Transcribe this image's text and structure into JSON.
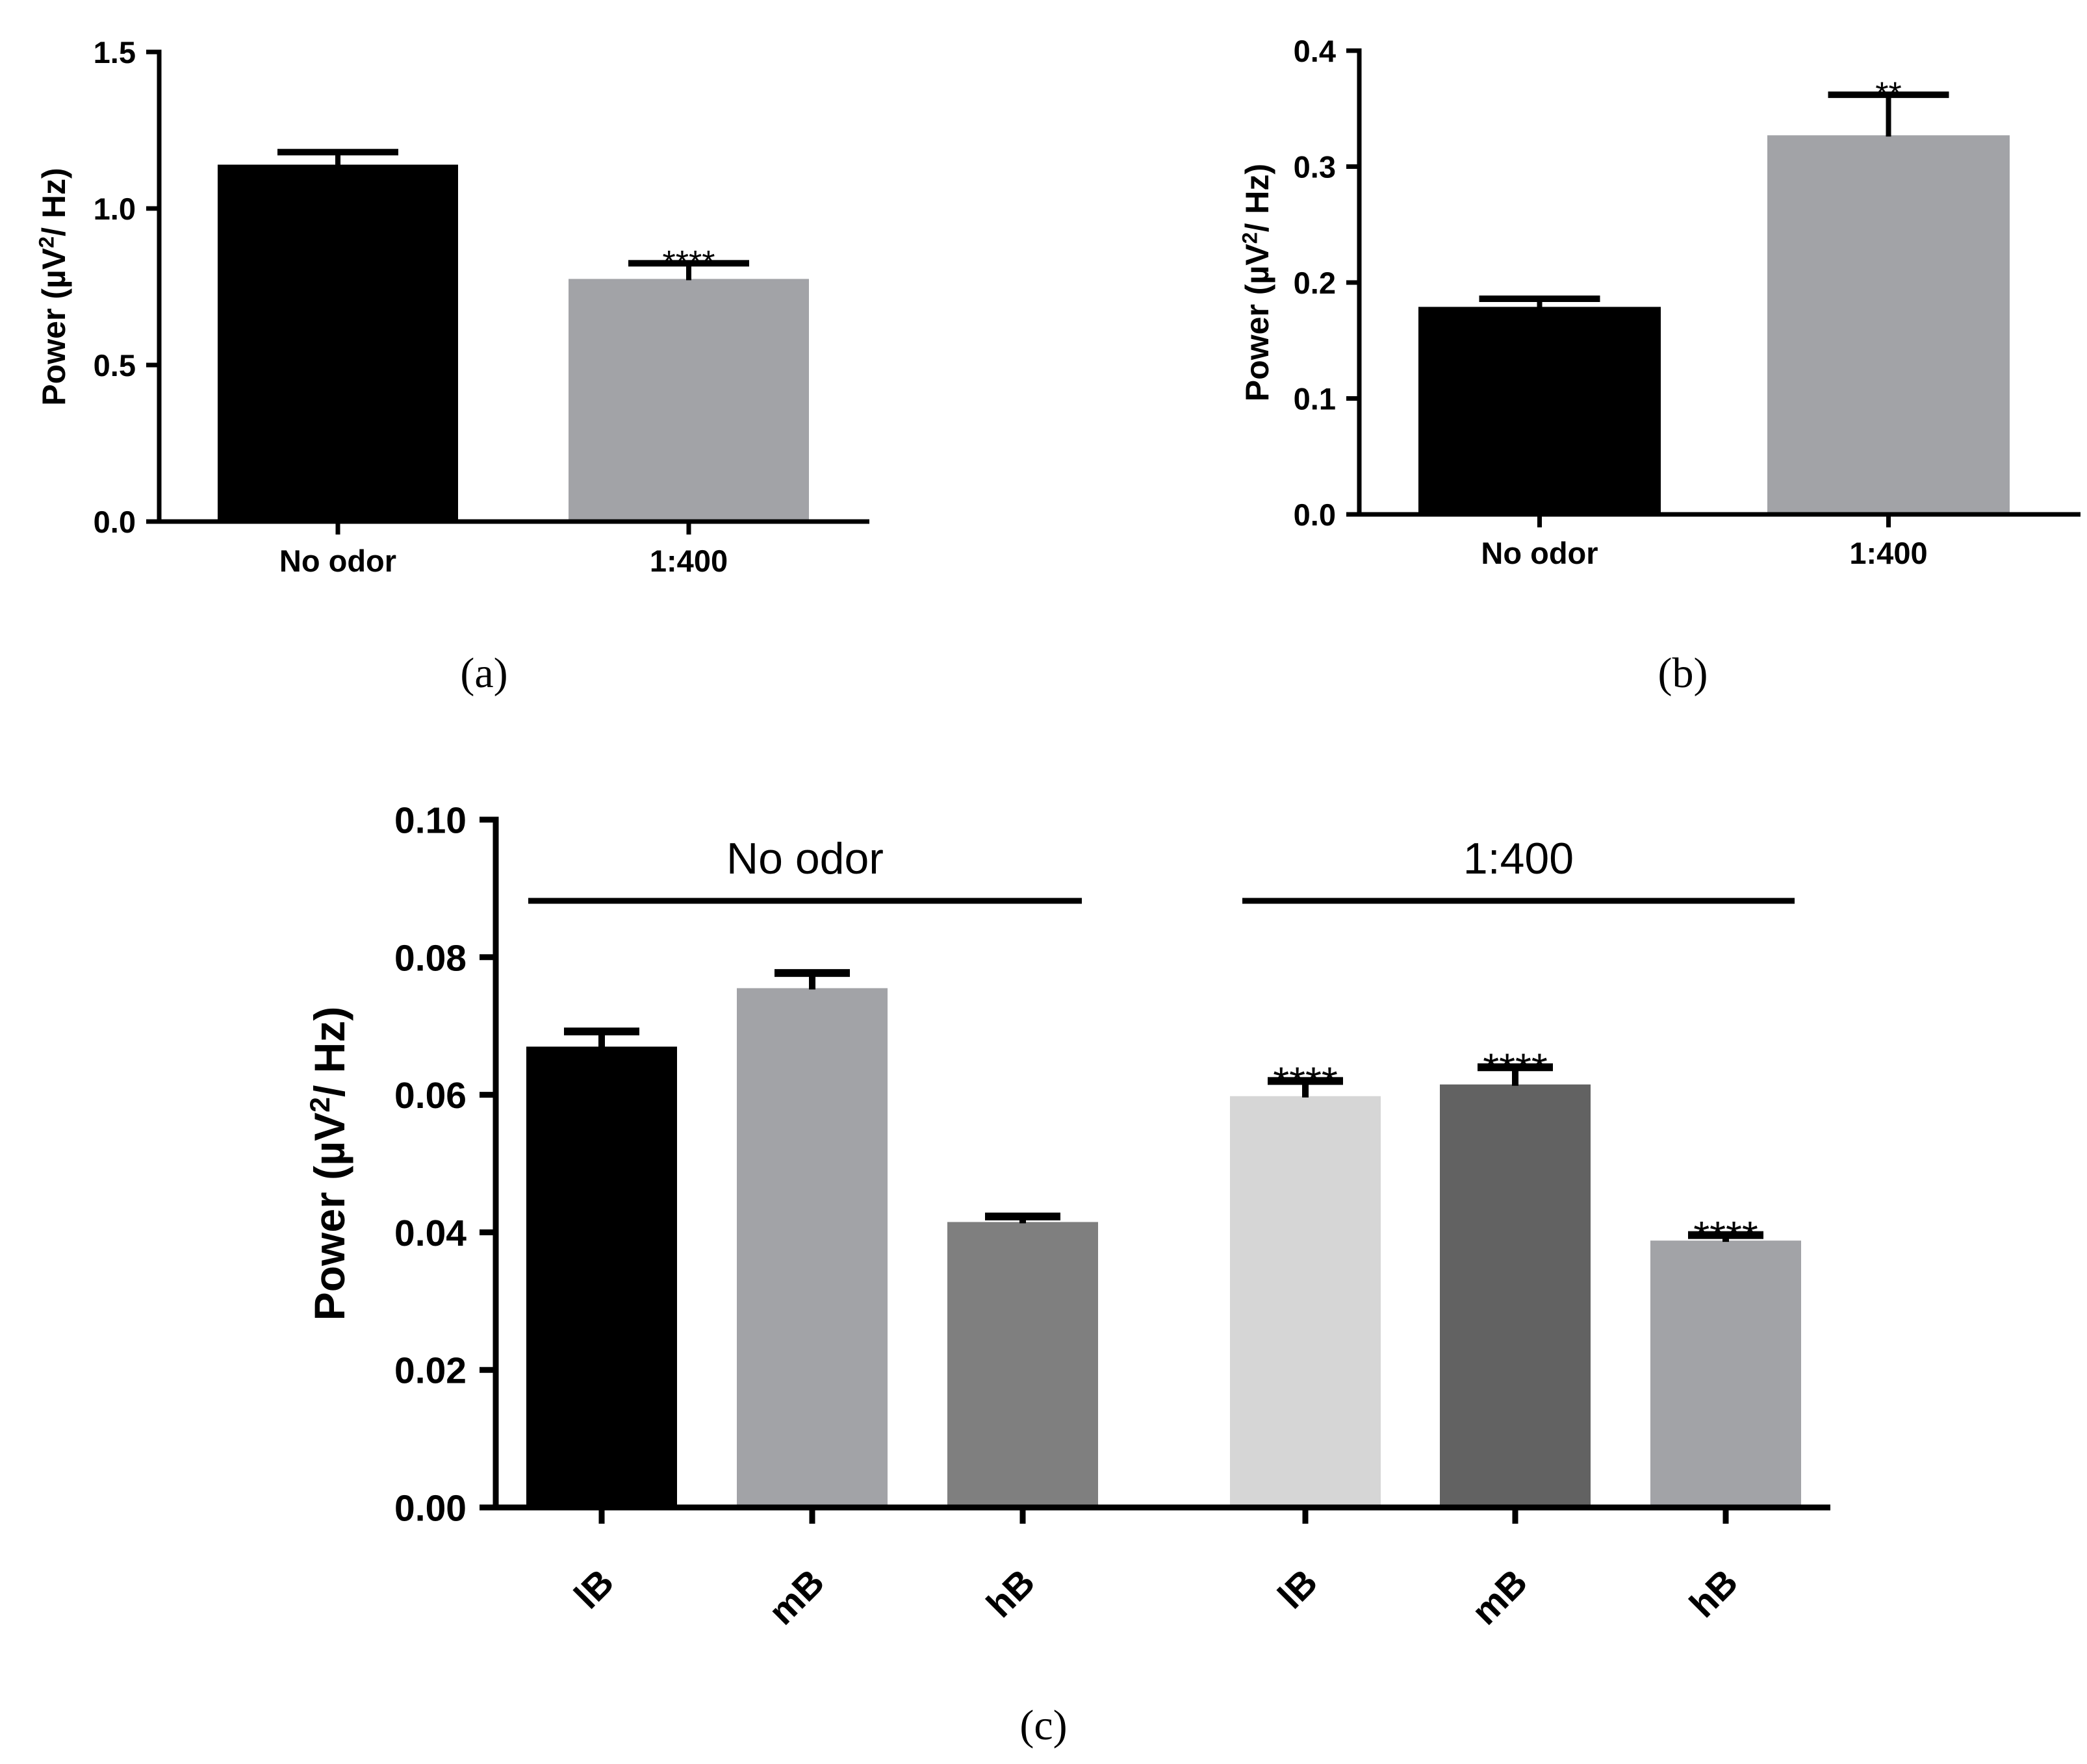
{
  "chart_data": [
    {
      "panel": "(a)",
      "type": "bar",
      "title": "",
      "xlabel": "",
      "ylabel": {
        "prefix": "Power (µV",
        "sup": "2",
        "suffix": "/ Hz)"
      },
      "ylim": [
        0,
        1.5
      ],
      "yticks": [
        0.0,
        0.5,
        1.0,
        1.5
      ],
      "ytick_labels": [
        "0.0",
        "0.5",
        "1.0",
        "1.5"
      ],
      "categories": [
        "No odor",
        "1:400"
      ],
      "values": [
        1.14,
        0.775
      ],
      "errors": [
        0.04,
        0.05
      ],
      "significance": [
        "",
        "****"
      ],
      "colors": [
        "#000000",
        "#a2a3a7"
      ],
      "grid": false
    },
    {
      "panel": "(b)",
      "type": "bar",
      "title": "",
      "xlabel": "",
      "ylabel": {
        "prefix": "Power (µV",
        "sup": "2",
        "suffix": "/ Hz)"
      },
      "ylim": [
        0,
        0.4
      ],
      "yticks": [
        0.0,
        0.1,
        0.2,
        0.3,
        0.4
      ],
      "ytick_labels": [
        "0.0",
        "0.1",
        "0.2",
        "0.3",
        "0.4"
      ],
      "categories": [
        "No odor",
        "1:400"
      ],
      "values": [
        0.179,
        0.327
      ],
      "errors": [
        0.007,
        0.035
      ],
      "significance": [
        "",
        "**"
      ],
      "colors": [
        "#000000",
        "#a2a3a7"
      ],
      "grid": false
    },
    {
      "panel": "(c)",
      "type": "bar",
      "title": "",
      "xlabel": "",
      "ylabel": {
        "prefix": "Power (µV",
        "sup": "2",
        "suffix": "/ Hz)"
      },
      "ylim": [
        0,
        0.1
      ],
      "yticks": [
        0.0,
        0.02,
        0.04,
        0.06,
        0.08,
        0.1
      ],
      "ytick_labels": [
        "0.00",
        "0.02",
        "0.04",
        "0.06",
        "0.08",
        "0.10"
      ],
      "categories": [
        "lB",
        "mB",
        "hB",
        "lB",
        "mB",
        "hB"
      ],
      "values": [
        0.067,
        0.0755,
        0.0415,
        0.0598,
        0.0615,
        0.0388
      ],
      "errors": [
        0.0022,
        0.0022,
        0.0008,
        0.0022,
        0.0025,
        0.0008
      ],
      "significance": [
        "",
        "",
        "",
        "****",
        "****",
        "****"
      ],
      "colors": [
        "#000000",
        "#a2a3a7",
        "#7f7f7f",
        "#d6d6d6",
        "#626262",
        "#a2a3a7"
      ],
      "groups": [
        {
          "label": "No odor",
          "start": 0,
          "end": 2
        },
        {
          "label": "1:400",
          "start": 3,
          "end": 5
        }
      ],
      "grid": false
    }
  ]
}
